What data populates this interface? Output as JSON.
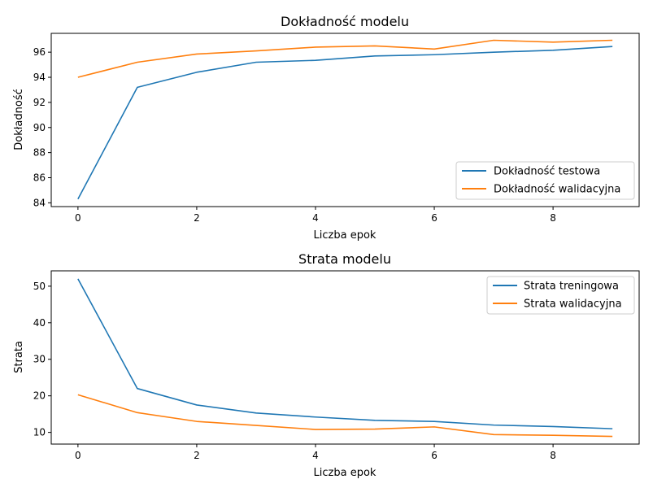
{
  "chart_data": [
    {
      "type": "line",
      "title": "Dokładność modelu",
      "xlabel": "Liczba epok",
      "ylabel": "Dokładność",
      "x": [
        0,
        1,
        2,
        3,
        4,
        5,
        6,
        7,
        8,
        9
      ],
      "xlim": [
        -0.45,
        9.45
      ],
      "ylim": [
        83.7,
        97.5
      ],
      "xticks": [
        0,
        2,
        4,
        6,
        8
      ],
      "yticks": [
        84,
        86,
        88,
        90,
        92,
        94,
        96
      ],
      "legend_position": "lower-right",
      "grid": false,
      "series": [
        {
          "name": "Dokładność testowa",
          "color": "#1f77b4",
          "values": [
            84.3,
            93.2,
            94.4,
            95.2,
            95.35,
            95.7,
            95.8,
            96.0,
            96.15,
            96.45
          ]
        },
        {
          "name": "Dokładność walidacyjna",
          "color": "#ff7f0e",
          "values": [
            94.0,
            95.2,
            95.85,
            96.1,
            96.4,
            96.5,
            96.25,
            96.95,
            96.8,
            96.95
          ]
        }
      ]
    },
    {
      "type": "line",
      "title": "Strata modelu",
      "xlabel": "Liczba epok",
      "ylabel": "Strata",
      "x": [
        0,
        1,
        2,
        3,
        4,
        5,
        6,
        7,
        8,
        9
      ],
      "xlim": [
        -0.45,
        9.45
      ],
      "ylim": [
        6.8,
        54.2
      ],
      "xticks": [
        0,
        2,
        4,
        6,
        8
      ],
      "yticks": [
        10,
        20,
        30,
        40,
        50
      ],
      "legend_position": "upper-right",
      "grid": false,
      "series": [
        {
          "name": "Strata treningowa",
          "color": "#1f77b4",
          "values": [
            52.0,
            22.0,
            17.5,
            15.3,
            14.2,
            13.3,
            13.0,
            12.0,
            11.6,
            11.0
          ]
        },
        {
          "name": "Strata walidacyjna",
          "color": "#ff7f0e",
          "values": [
            20.3,
            15.4,
            13.0,
            11.9,
            10.8,
            10.9,
            11.5,
            9.4,
            9.2,
            8.9
          ]
        }
      ]
    }
  ]
}
